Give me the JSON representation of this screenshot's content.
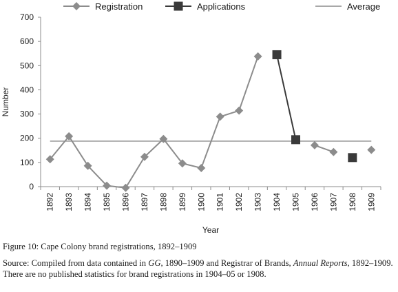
{
  "chart_data": {
    "type": "line",
    "xlabel": "Year",
    "ylabel": "Number",
    "ylim": [
      0,
      700
    ],
    "yticks": [
      0,
      100,
      200,
      300,
      400,
      500,
      600,
      700
    ],
    "categories": [
      "1892",
      "1893",
      "1894",
      "1895",
      "1896",
      "1897",
      "1898",
      "1899",
      "1900",
      "1901",
      "1902",
      "1903",
      "1904",
      "1905",
      "1906",
      "1907",
      "1908",
      "1909"
    ],
    "series": [
      {
        "name": "Registration",
        "color": "#8c8c8c",
        "marker": "diamond",
        "values": [
          113,
          208,
          86,
          4,
          -5,
          123,
          197,
          96,
          77,
          289,
          314,
          538,
          null,
          null,
          171,
          143,
          null,
          152
        ]
      },
      {
        "name": "Applications",
        "color": "#3a3a3a",
        "marker": "square",
        "values": [
          null,
          null,
          null,
          null,
          null,
          null,
          null,
          null,
          null,
          null,
          null,
          null,
          545,
          194,
          null,
          null,
          120,
          null
        ]
      },
      {
        "name": "Average",
        "color": "#8c8c8c",
        "marker": "none",
        "values": [
          188,
          188,
          188,
          188,
          188,
          188,
          188,
          188,
          188,
          188,
          188,
          188,
          188,
          188,
          188,
          188,
          188,
          188
        ]
      }
    ],
    "legend_position": "top",
    "grid": false
  },
  "caption": {
    "figure": "Figure 10: Cape Colony brand registrations, 1892–1909",
    "source_lead": "Source: Compiled from data contained in ",
    "source_gg": "GG",
    "source_mid": ", 1890–1909 and Registrar of Brands, ",
    "source_reports": "Annual Reports",
    "source_tail": ", 1892–1909. There are no published statistics for brand registrations in 1904–05 or 1908."
  }
}
